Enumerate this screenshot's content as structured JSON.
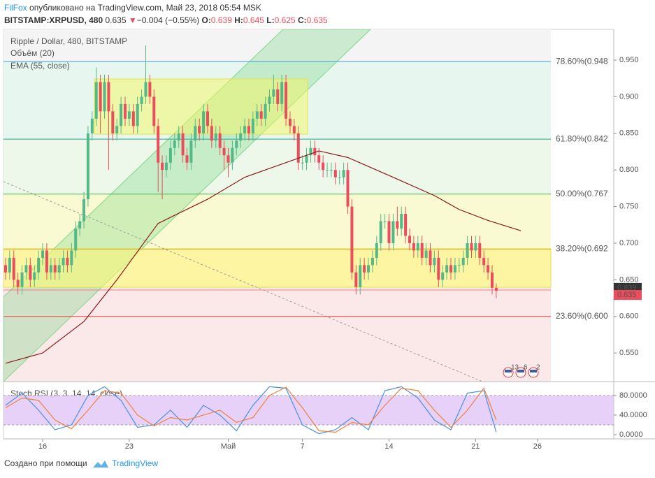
{
  "header": {
    "author": "FilFox",
    "published": "опубликовано на TradingView.com, Май 23, 2018 05:54 MSK",
    "symbol": "BITSTAMP:XRPUSD, 480",
    "last": "0.635",
    "arrow": "▼",
    "change": "−0.004 (−0.55%)",
    "o_label": "O:",
    "o": "0.639",
    "h_label": "H:",
    "h": "0.645",
    "l_label": "L:",
    "l": "0.625",
    "c_label": "C:",
    "c": "0.635"
  },
  "footer": {
    "text": "Создано при помощи",
    "brand": "TradingView"
  },
  "chart_data": [
    {
      "type": "candlestick",
      "title": "Ripple / Dollar, 480, BITSTAMP",
      "indicators_text": [
        "Объём (20)",
        "EMA (55, close)"
      ],
      "up_color": "#53b987",
      "down_color": "#eb4d5c",
      "open": [
        0.67,
        0.66,
        0.68,
        0.65,
        0.64,
        0.66,
        0.67,
        0.65,
        0.66,
        0.68,
        0.69,
        0.66,
        0.67,
        0.66,
        0.67,
        0.68,
        0.67,
        0.69,
        0.72,
        0.73,
        0.76,
        0.85,
        0.87,
        0.92,
        0.88,
        0.92,
        0.88,
        0.85,
        0.86,
        0.89,
        0.87,
        0.88,
        0.86,
        0.89,
        0.9,
        0.92,
        0.9,
        0.86,
        0.81,
        0.8,
        0.81,
        0.83,
        0.84,
        0.85,
        0.82,
        0.81,
        0.84,
        0.86,
        0.85,
        0.88,
        0.86,
        0.84,
        0.85,
        0.83,
        0.82,
        0.81,
        0.83,
        0.84,
        0.85,
        0.86,
        0.85,
        0.87,
        0.88,
        0.87,
        0.89,
        0.9,
        0.91,
        0.89,
        0.92,
        0.87,
        0.86,
        0.85,
        0.81,
        0.81,
        0.82,
        0.83,
        0.82,
        0.81,
        0.8,
        0.8,
        0.8,
        0.79,
        0.79,
        0.8,
        0.75,
        0.66,
        0.64,
        0.67,
        0.66,
        0.67,
        0.68,
        0.7,
        0.73,
        0.73,
        0.7,
        0.73,
        0.72,
        0.74,
        0.71,
        0.7,
        0.69,
        0.7,
        0.68,
        0.69,
        0.67,
        0.68,
        0.65,
        0.66,
        0.67,
        0.66,
        0.67,
        0.67,
        0.68,
        0.7,
        0.69,
        0.7,
        0.68,
        0.67,
        0.66,
        0.639
      ],
      "high": [
        0.68,
        0.69,
        0.69,
        0.66,
        0.67,
        0.68,
        0.68,
        0.67,
        0.69,
        0.7,
        0.7,
        0.68,
        0.68,
        0.68,
        0.69,
        0.69,
        0.7,
        0.73,
        0.74,
        0.77,
        0.86,
        0.88,
        0.94,
        0.93,
        0.93,
        0.93,
        0.89,
        0.87,
        0.9,
        0.9,
        0.89,
        0.89,
        0.9,
        0.91,
        0.97,
        0.93,
        0.91,
        0.87,
        0.82,
        0.82,
        0.84,
        0.85,
        0.86,
        0.86,
        0.83,
        0.85,
        0.87,
        0.87,
        0.89,
        0.89,
        0.87,
        0.86,
        0.86,
        0.84,
        0.83,
        0.84,
        0.85,
        0.86,
        0.87,
        0.87,
        0.88,
        0.89,
        0.89,
        0.9,
        0.91,
        0.93,
        0.92,
        0.93,
        0.93,
        0.88,
        0.87,
        0.86,
        0.82,
        0.83,
        0.84,
        0.84,
        0.83,
        0.82,
        0.81,
        0.81,
        0.81,
        0.8,
        0.81,
        0.81,
        0.76,
        0.67,
        0.68,
        0.68,
        0.68,
        0.69,
        0.71,
        0.74,
        0.74,
        0.74,
        0.74,
        0.75,
        0.75,
        0.75,
        0.72,
        0.71,
        0.71,
        0.71,
        0.7,
        0.7,
        0.69,
        0.69,
        0.67,
        0.68,
        0.68,
        0.68,
        0.68,
        0.69,
        0.71,
        0.71,
        0.71,
        0.71,
        0.69,
        0.68,
        0.67,
        0.645
      ],
      "low": [
        0.65,
        0.65,
        0.64,
        0.63,
        0.63,
        0.65,
        0.64,
        0.64,
        0.65,
        0.67,
        0.65,
        0.65,
        0.65,
        0.65,
        0.66,
        0.66,
        0.66,
        0.68,
        0.71,
        0.72,
        0.75,
        0.84,
        0.86,
        0.85,
        0.87,
        0.8,
        0.84,
        0.84,
        0.85,
        0.86,
        0.86,
        0.85,
        0.85,
        0.88,
        0.89,
        0.89,
        0.85,
        0.77,
        0.76,
        0.79,
        0.8,
        0.82,
        0.83,
        0.81,
        0.8,
        0.8,
        0.83,
        0.84,
        0.84,
        0.85,
        0.83,
        0.83,
        0.82,
        0.8,
        0.79,
        0.8,
        0.82,
        0.83,
        0.84,
        0.84,
        0.84,
        0.86,
        0.86,
        0.86,
        0.88,
        0.89,
        0.88,
        0.88,
        0.86,
        0.85,
        0.84,
        0.8,
        0.8,
        0.8,
        0.81,
        0.81,
        0.8,
        0.79,
        0.79,
        0.79,
        0.78,
        0.78,
        0.78,
        0.74,
        0.65,
        0.63,
        0.63,
        0.65,
        0.65,
        0.66,
        0.67,
        0.69,
        0.72,
        0.69,
        0.69,
        0.71,
        0.71,
        0.7,
        0.69,
        0.68,
        0.68,
        0.67,
        0.67,
        0.66,
        0.66,
        0.64,
        0.64,
        0.65,
        0.65,
        0.65,
        0.66,
        0.66,
        0.67,
        0.68,
        0.68,
        0.67,
        0.66,
        0.65,
        0.63,
        0.625
      ],
      "close": [
        0.66,
        0.68,
        0.65,
        0.64,
        0.66,
        0.67,
        0.65,
        0.66,
        0.68,
        0.69,
        0.66,
        0.67,
        0.66,
        0.67,
        0.68,
        0.67,
        0.69,
        0.72,
        0.73,
        0.76,
        0.85,
        0.87,
        0.92,
        0.88,
        0.92,
        0.88,
        0.85,
        0.86,
        0.89,
        0.87,
        0.88,
        0.86,
        0.89,
        0.9,
        0.92,
        0.9,
        0.86,
        0.81,
        0.8,
        0.81,
        0.83,
        0.84,
        0.85,
        0.82,
        0.81,
        0.84,
        0.86,
        0.85,
        0.88,
        0.86,
        0.84,
        0.85,
        0.83,
        0.82,
        0.81,
        0.83,
        0.84,
        0.85,
        0.86,
        0.85,
        0.87,
        0.88,
        0.87,
        0.89,
        0.9,
        0.91,
        0.89,
        0.92,
        0.87,
        0.86,
        0.85,
        0.81,
        0.81,
        0.82,
        0.83,
        0.82,
        0.81,
        0.8,
        0.8,
        0.8,
        0.79,
        0.79,
        0.8,
        0.75,
        0.66,
        0.64,
        0.67,
        0.66,
        0.67,
        0.68,
        0.7,
        0.73,
        0.73,
        0.7,
        0.73,
        0.72,
        0.74,
        0.71,
        0.7,
        0.69,
        0.7,
        0.68,
        0.69,
        0.67,
        0.68,
        0.65,
        0.66,
        0.67,
        0.66,
        0.67,
        0.67,
        0.68,
        0.7,
        0.69,
        0.7,
        0.68,
        0.67,
        0.66,
        0.639,
        0.635
      ],
      "ema": {
        "color": "#8b1a1a",
        "x": [
          0,
          9,
          19,
          27,
          37,
          49,
          58,
          68,
          76,
          83,
          94,
          104,
          110,
          117,
          125
        ],
        "values": [
          0.536,
          0.55,
          0.593,
          0.65,
          0.727,
          0.76,
          0.79,
          0.81,
          0.826,
          0.817,
          0.79,
          0.765,
          0.746,
          0.731,
          0.717
        ]
      },
      "fib": [
        {
          "value": 0.948,
          "label": "78.60%(0.948",
          "color": "#3d9bd6",
          "fill": "#eaf4fb"
        },
        {
          "value": 0.842,
          "label": "61.80%(0.842",
          "color": "#26a68a",
          "fill": "#e7f6ef"
        },
        {
          "value": 0.767,
          "label": "50.00%(0.767",
          "color": "#4caf50",
          "fill": "#eef8ea"
        },
        {
          "value": 0.692,
          "label": "38.20%(0.692",
          "color": "#d4a017",
          "fill": "#fafad2"
        },
        {
          "value": 0.6,
          "label": "23.60%(0.600",
          "color": "#e53935",
          "fill": "#fbe9e9"
        }
      ],
      "last_prices": [
        0.639,
        0.635
      ],
      "last_price_colors": [
        "#333333",
        "#eb4d5c"
      ],
      "events": [
        "13",
        "6",
        "2"
      ],
      "xlim": [
        -0.5,
        147.5
      ],
      "ylim": [
        0.511,
        0.992
      ],
      "yticks": [
        {
          "value": 0.95,
          "label": "0.950"
        },
        {
          "value": 0.9,
          "label": "0.900"
        },
        {
          "value": 0.85,
          "label": "0.850"
        },
        {
          "value": 0.8,
          "label": "0.800"
        },
        {
          "value": 0.75,
          "label": "0.750"
        },
        {
          "value": 0.7,
          "label": "0.700"
        },
        {
          "value": 0.65,
          "label": "0.650"
        },
        {
          "value": 0.6,
          "label": "0.600"
        },
        {
          "value": 0.55,
          "label": "0.550"
        }
      ],
      "xticks": [
        {
          "value": 9,
          "label": "16"
        },
        {
          "value": 30,
          "label": "23"
        },
        {
          "value": 54,
          "label": "Май"
        },
        {
          "value": 72,
          "label": "7"
        },
        {
          "value": 93,
          "label": "14"
        },
        {
          "value": 114,
          "label": "21"
        },
        {
          "value": 129,
          "label": "26"
        }
      ]
    },
    {
      "type": "line",
      "title": "Stoch RSI (3, 3, 14, 14, close)",
      "band": [
        20,
        80
      ],
      "band_color": "#e1c6f7",
      "x": [
        0,
        4,
        8,
        12,
        16,
        20,
        24,
        28,
        32,
        36,
        40,
        44,
        48,
        52,
        56,
        60,
        64,
        68,
        72,
        76,
        80,
        84,
        88,
        92,
        96,
        100,
        104,
        108,
        112,
        116,
        119
      ],
      "series": [
        {
          "name": "K",
          "color": "#4a90e2",
          "values": [
            60,
            85,
            50,
            10,
            20,
            80,
            98,
            70,
            15,
            20,
            50,
            15,
            60,
            40,
            8,
            60,
            98,
            95,
            20,
            2,
            10,
            35,
            10,
            90,
            98,
            75,
            30,
            10,
            85,
            90,
            5
          ]
        },
        {
          "name": "D",
          "color": "#f0813c",
          "values": [
            55,
            75,
            70,
            30,
            12,
            50,
            90,
            85,
            40,
            18,
            35,
            30,
            40,
            50,
            25,
            35,
            80,
            97,
            55,
            8,
            5,
            25,
            20,
            60,
            95,
            90,
            50,
            15,
            50,
            95,
            30
          ]
        }
      ],
      "xlim": [
        -0.5,
        147.5
      ],
      "ylim": [
        -8.6,
        105.7
      ],
      "yticks": [
        {
          "value": 80,
          "label": "80.0000"
        },
        {
          "value": 40,
          "label": "40.0000"
        },
        {
          "value": 0,
          "label": "0.0000"
        }
      ]
    }
  ]
}
